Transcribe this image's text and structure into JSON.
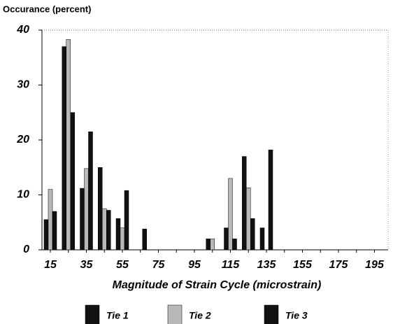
{
  "chart_data": {
    "type": "bar",
    "y_label": "Occurance (percent)",
    "x_label": "Magnitude of Strain Cycle (microstrain)",
    "categories": [
      "15",
      null,
      "35",
      null,
      "55",
      null,
      "75",
      null,
      "95",
      null,
      "115",
      null,
      "135",
      null,
      "155",
      null,
      "175",
      null,
      "195"
    ],
    "series": [
      {
        "name": "Tie 1",
        "color": "#111111",
        "values": [
          5.5,
          37,
          11.2,
          15,
          5.7,
          0,
          0,
          0,
          0,
          2,
          4,
          17,
          4,
          0,
          0,
          0,
          0,
          0,
          0
        ]
      },
      {
        "name": "Tie 2",
        "color": "#b8b8b8",
        "values": [
          11,
          38.3,
          14.8,
          7.5,
          4,
          0,
          0,
          0,
          0,
          2,
          13,
          11.3,
          0,
          0,
          0,
          0,
          0,
          0,
          0
        ]
      },
      {
        "name": "Tie 3",
        "color": "#111111",
        "values": [
          7,
          25,
          21.5,
          7.2,
          10.8,
          3.8,
          0,
          0,
          0,
          0,
          2,
          5.7,
          18.2,
          0,
          0,
          0,
          0,
          0,
          0
        ]
      }
    ],
    "ylim": [
      0,
      40
    ],
    "yticks": [
      0,
      10,
      20,
      30,
      40
    ],
    "grid": false,
    "legend": "bottom"
  }
}
